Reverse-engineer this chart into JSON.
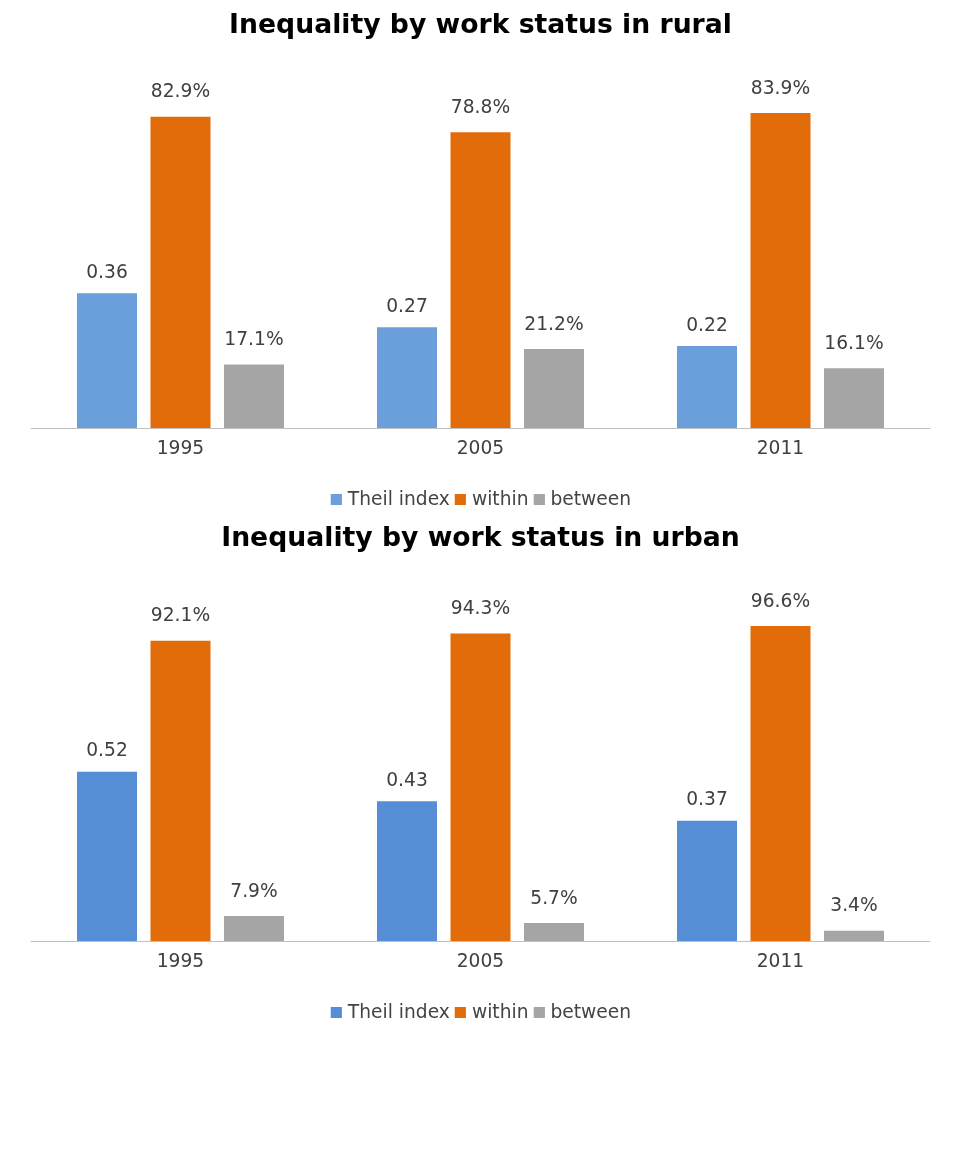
{
  "chart_data": [
    {
      "type": "bar",
      "title": "Inequality by work status in rural",
      "categories": [
        "1995",
        "2005",
        "2011"
      ],
      "legend": "bottom",
      "series": [
        {
          "name": "Theil index",
          "color": "#6a9fdc",
          "values": [
            0.36,
            0.27,
            0.22
          ],
          "value_labels": [
            "0.36",
            "0.27",
            "0.22"
          ]
        },
        {
          "name": "within",
          "color": "#e36c0a",
          "values": [
            0.829,
            0.788,
            0.839
          ],
          "value_labels": [
            "82.9%",
            "78.8%",
            "83.9%"
          ]
        },
        {
          "name": "between",
          "color": "#a5a5a5",
          "values": [
            0.171,
            0.212,
            0.161
          ],
          "value_labels": [
            "17.1%",
            "21.2%",
            "16.1%"
          ]
        }
      ]
    },
    {
      "type": "bar",
      "title": "Inequality by work status in urban",
      "categories": [
        "1995",
        "2005",
        "2011"
      ],
      "legend": "bottom",
      "series": [
        {
          "name": "Theil index",
          "color": "#558ed5",
          "values": [
            0.52,
            0.43,
            0.37
          ],
          "value_labels": [
            "0.52",
            "0.43",
            "0.37"
          ]
        },
        {
          "name": "within",
          "color": "#e36c0a",
          "values": [
            0.921,
            0.943,
            0.966
          ],
          "value_labels": [
            "92.1%",
            "94.3%",
            "96.6%"
          ]
        },
        {
          "name": "between",
          "color": "#a5a5a5",
          "values": [
            0.079,
            0.057,
            0.034
          ],
          "value_labels": [
            "7.9%",
            "5.7%",
            "3.4%"
          ]
        }
      ]
    }
  ]
}
